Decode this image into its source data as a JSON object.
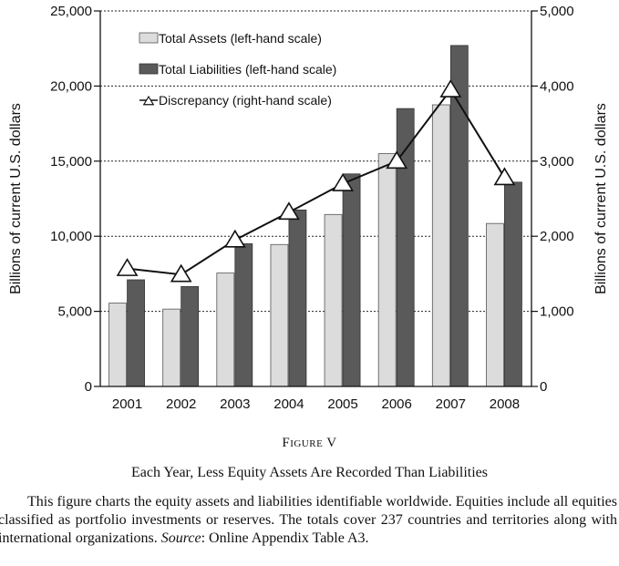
{
  "chart_data": {
    "type": "bar",
    "categories": [
      "2001",
      "2002",
      "2003",
      "2004",
      "2005",
      "2006",
      "2007",
      "2008"
    ],
    "series": [
      {
        "name": "Total Assets (left-hand scale)",
        "axis": "left",
        "kind": "bar",
        "color": "#dcdcdc",
        "values": [
          5550,
          5150,
          7550,
          9450,
          11450,
          15500,
          18750,
          10850
        ]
      },
      {
        "name": "Total Liabilities (left-hand scale)",
        "axis": "left",
        "kind": "bar",
        "color": "#5a5a5a",
        "values": [
          7100,
          6650,
          9500,
          11750,
          14150,
          18500,
          22700,
          13600
        ]
      },
      {
        "name": "Discrepancy (right-hand scale)",
        "axis": "right",
        "kind": "line",
        "marker": "triangle",
        "values": [
          1570,
          1490,
          1950,
          2320,
          2700,
          3000,
          3950,
          2780
        ]
      }
    ],
    "y_left": {
      "label": "Billions of current U.S. dollars",
      "min": 0,
      "max": 25000,
      "ticks": [
        "0",
        "5,000",
        "10,000",
        "15,000",
        "20,000",
        "25,000"
      ]
    },
    "y_right": {
      "label": "Billions of current U.S. dollars",
      "min": 0,
      "max": 5000,
      "ticks": [
        "0",
        "1,000",
        "2,000",
        "3,000",
        "4,000",
        "5,000"
      ]
    },
    "grid": "horizontal dashed",
    "legend_position": "top-left"
  },
  "caption": {
    "figure_label": "Figure V",
    "title": "Each Year, Less Equity Assets Are Recorded Than Liabilities",
    "desc_1": "This figure charts the equity assets and liabilities identifiable worldwide. Equities include all equities classified as portfolio investments or reserves. The totals cover 237 countries and territories along with international organizations. ",
    "source_label": "Source",
    "desc_2": ": Online Appendix Table A3."
  }
}
